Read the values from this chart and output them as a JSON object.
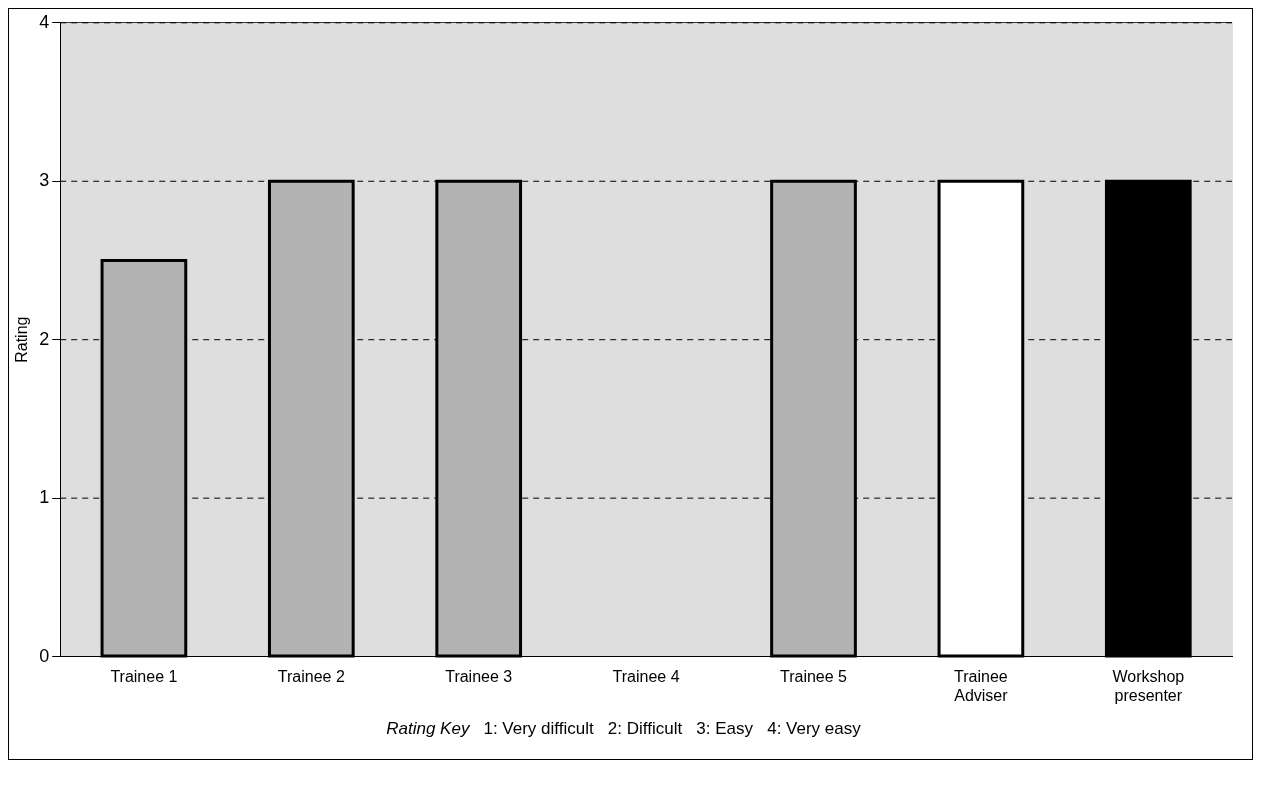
{
  "chart_data": {
    "type": "bar",
    "ylabel": "Rating",
    "categories": [
      "Trainee 1",
      "Trainee 2",
      "Trainee 3",
      "Trainee 4",
      "Trainee 5",
      "Trainee Adviser",
      "Workshop presenter"
    ],
    "values": [
      2.5,
      3,
      3,
      0,
      3,
      3,
      3
    ],
    "colors": [
      "#b3b3b3",
      "#b3b3b3",
      "#b3b3b3",
      "#b3b3b3",
      "#b3b3b3",
      "#ffffff",
      "#000000"
    ],
    "ylim": [
      0,
      4
    ],
    "yticks": [
      0,
      1,
      2,
      3,
      4
    ],
    "grid": "y",
    "legend": false,
    "annotations": [
      "Rating Key",
      "1: Very difficult   2: Difficult   3: Easy   4: Very easy"
    ]
  }
}
